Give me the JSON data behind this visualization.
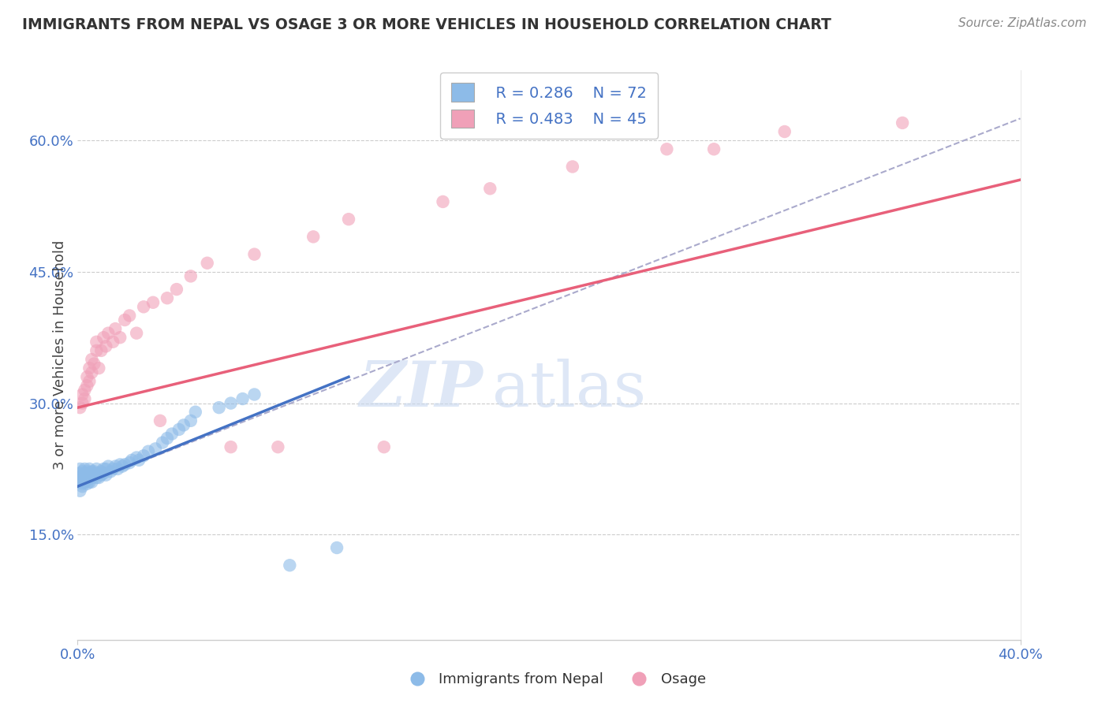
{
  "title": "IMMIGRANTS FROM NEPAL VS OSAGE 3 OR MORE VEHICLES IN HOUSEHOLD CORRELATION CHART",
  "source": "Source: ZipAtlas.com",
  "ylabel": "3 or more Vehicles in Household",
  "y_tick_labels": [
    "15.0%",
    "30.0%",
    "45.0%",
    "60.0%"
  ],
  "y_tick_values": [
    0.15,
    0.3,
    0.45,
    0.6
  ],
  "x_range": [
    0.0,
    0.4
  ],
  "y_range": [
    0.03,
    0.68
  ],
  "legend_r1": "R = 0.286",
  "legend_n1": "N = 72",
  "legend_r2": "R = 0.483",
  "legend_n2": "N = 45",
  "color_nepal": "#8DBBE8",
  "color_osage": "#F0A0B8",
  "color_line_nepal": "#4472C4",
  "color_line_osage": "#E8607A",
  "color_trend_line": "#AAAACC",
  "nepal_line_x": [
    0.0,
    0.115
  ],
  "nepal_line_y": [
    0.205,
    0.33
  ],
  "osage_line_x": [
    0.0,
    0.4
  ],
  "osage_line_y": [
    0.295,
    0.555
  ],
  "trend_line_x": [
    0.0,
    0.4
  ],
  "trend_line_y": [
    0.205,
    0.625
  ],
  "nepal_x": [
    0.001,
    0.001,
    0.001,
    0.001,
    0.001,
    0.002,
    0.002,
    0.002,
    0.002,
    0.002,
    0.002,
    0.003,
    0.003,
    0.003,
    0.003,
    0.003,
    0.003,
    0.004,
    0.004,
    0.004,
    0.004,
    0.004,
    0.005,
    0.005,
    0.005,
    0.005,
    0.006,
    0.006,
    0.006,
    0.006,
    0.007,
    0.007,
    0.007,
    0.008,
    0.008,
    0.008,
    0.009,
    0.009,
    0.01,
    0.01,
    0.011,
    0.011,
    0.012,
    0.012,
    0.013,
    0.014,
    0.015,
    0.016,
    0.017,
    0.018,
    0.019,
    0.02,
    0.022,
    0.023,
    0.025,
    0.026,
    0.028,
    0.03,
    0.033,
    0.036,
    0.038,
    0.04,
    0.043,
    0.045,
    0.048,
    0.05,
    0.06,
    0.065,
    0.07,
    0.075,
    0.09,
    0.11
  ],
  "nepal_y": [
    0.215,
    0.21,
    0.225,
    0.22,
    0.2,
    0.218,
    0.205,
    0.215,
    0.222,
    0.21,
    0.208,
    0.215,
    0.22,
    0.218,
    0.225,
    0.21,
    0.215,
    0.22,
    0.215,
    0.222,
    0.212,
    0.208,
    0.22,
    0.215,
    0.225,
    0.21,
    0.218,
    0.222,
    0.215,
    0.21,
    0.22,
    0.218,
    0.222,
    0.225,
    0.215,
    0.218,
    0.22,
    0.215,
    0.222,
    0.218,
    0.225,
    0.22,
    0.225,
    0.218,
    0.228,
    0.222,
    0.225,
    0.228,
    0.225,
    0.23,
    0.228,
    0.23,
    0.232,
    0.235,
    0.238,
    0.235,
    0.24,
    0.245,
    0.248,
    0.255,
    0.26,
    0.265,
    0.27,
    0.275,
    0.28,
    0.29,
    0.295,
    0.3,
    0.305,
    0.31,
    0.115,
    0.135
  ],
  "osage_x": [
    0.001,
    0.002,
    0.002,
    0.003,
    0.003,
    0.004,
    0.004,
    0.005,
    0.005,
    0.006,
    0.006,
    0.007,
    0.008,
    0.008,
    0.009,
    0.01,
    0.011,
    0.012,
    0.013,
    0.015,
    0.016,
    0.018,
    0.02,
    0.022,
    0.025,
    0.028,
    0.032,
    0.035,
    0.038,
    0.042,
    0.048,
    0.055,
    0.065,
    0.075,
    0.085,
    0.1,
    0.115,
    0.13,
    0.155,
    0.175,
    0.21,
    0.25,
    0.3,
    0.35,
    0.27
  ],
  "osage_y": [
    0.295,
    0.31,
    0.3,
    0.315,
    0.305,
    0.32,
    0.33,
    0.325,
    0.34,
    0.335,
    0.35,
    0.345,
    0.36,
    0.37,
    0.34,
    0.36,
    0.375,
    0.365,
    0.38,
    0.37,
    0.385,
    0.375,
    0.395,
    0.4,
    0.38,
    0.41,
    0.415,
    0.28,
    0.42,
    0.43,
    0.445,
    0.46,
    0.25,
    0.47,
    0.25,
    0.49,
    0.51,
    0.25,
    0.53,
    0.545,
    0.57,
    0.59,
    0.61,
    0.62,
    0.59
  ]
}
